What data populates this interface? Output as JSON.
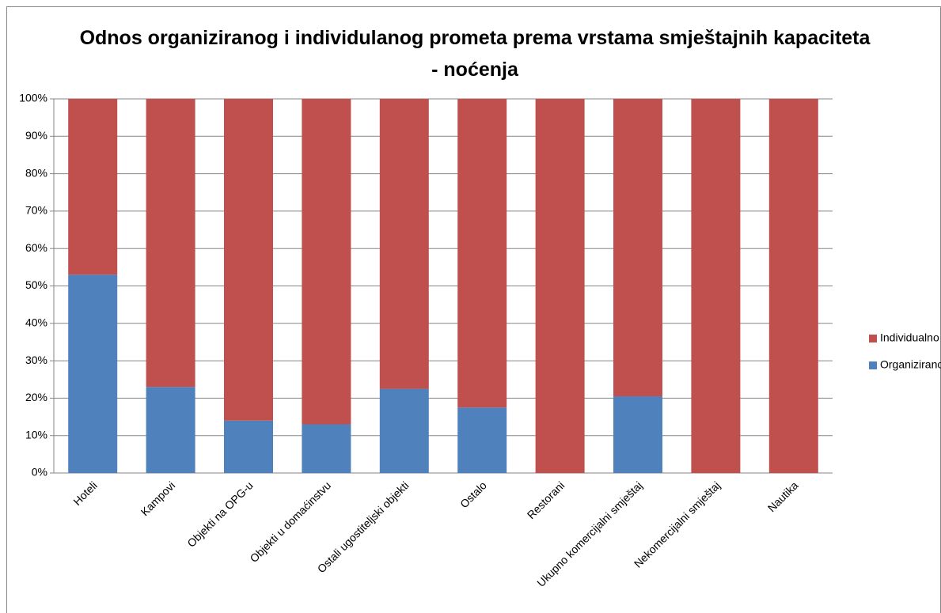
{
  "chart_data": {
    "type": "stacked_bar",
    "title": "Odnos organiziranog i individulanog prometa prema vrstama smještajnih kapaciteta - noćenja",
    "categories": [
      "Hoteli",
      "Kampovi",
      "Objekti na OPG-u",
      "Objekti u domaćinstvu",
      "Ostali ugostiteljski objekti",
      "Ostalo",
      "Restorani",
      "Ukupno komercijalni smještaj",
      "Nekomercijalni smještaj",
      "Nautika"
    ],
    "series": [
      {
        "name": "Organizirano",
        "color": "#4f81bd",
        "values": [
          53,
          23,
          14,
          13,
          22.5,
          17.5,
          0,
          20.5,
          0,
          0
        ]
      },
      {
        "name": "Individualno",
        "color": "#c0504d",
        "values": [
          47,
          77,
          86,
          87,
          77.5,
          82.5,
          100,
          79.5,
          100,
          100
        ]
      }
    ],
    "ylim": [
      0,
      100
    ],
    "yticks": [
      {
        "value": 0,
        "label": "0%"
      },
      {
        "value": 10,
        "label": "10%"
      },
      {
        "value": 20,
        "label": "20%"
      },
      {
        "value": 30,
        "label": "30%"
      },
      {
        "value": 40,
        "label": "40%"
      },
      {
        "value": 50,
        "label": "50%"
      },
      {
        "value": 60,
        "label": "60%"
      },
      {
        "value": 70,
        "label": "70%"
      },
      {
        "value": 80,
        "label": "80%"
      },
      {
        "value": 90,
        "label": "90%"
      },
      {
        "value": 100,
        "label": "100%"
      }
    ],
    "grid": true,
    "legend": "right"
  }
}
